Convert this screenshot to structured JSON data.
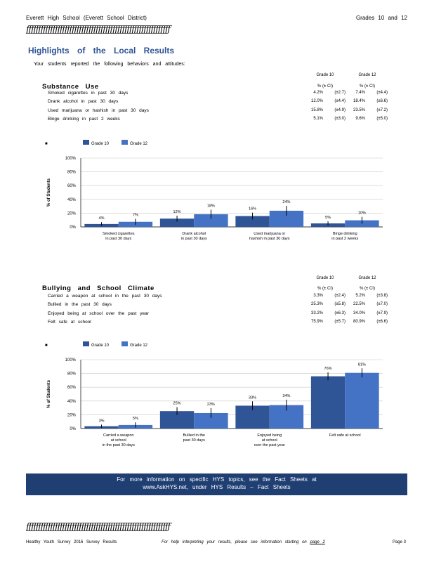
{
  "header": {
    "school": "Everett High School (Everett School District)",
    "grades": "Grades 10 and 12"
  },
  "rule": "ƒƒƒƒƒƒƒƒƒƒƒƒƒƒƒƒƒƒƒƒƒƒƒƒƒƒƒƒƒƒƒƒƒƒƒƒƒƒƒƒƒƒƒƒƒƒƒƒƒƒƒƒƒƒƒƒƒƒƒƒ",
  "title": "Highlights of the Local Results",
  "subtitle": "Your students reported the following behaviors and attitudes:",
  "columns": {
    "g10": "Grade 10",
    "g12": "Grade 12",
    "pct": "% (± CI)"
  },
  "sections": [
    {
      "title": "Substance Use",
      "rows": [
        {
          "label": "Smoked cigarettes in past 30 days",
          "g10": "4.2%",
          "g10ci": "(±2.7)",
          "g12": "7.4%",
          "g12ci": "(±4.4)"
        },
        {
          "label": "Drank alcohol in past 30 days",
          "g10": "12.0%",
          "g10ci": "(±4.4)",
          "g12": "18.4%",
          "g12ci": "(±6.6)"
        },
        {
          "label": "Used marijuana or hashish in past 30 days",
          "g10": "15.8%",
          "g10ci": "(±4.9)",
          "g12": "23.5%",
          "g12ci": "(±7.2)"
        },
        {
          "label": "Binge drinking in past 2 weeks",
          "g10": "5.1%",
          "g10ci": "(±3.0)",
          "g12": "9.6%",
          "g12ci": "(±5.0)"
        }
      ]
    },
    {
      "title": "Bullying and School Climate",
      "rows": [
        {
          "label": "Carried a weapon at school in the past 30 days",
          "g10": "3.3%",
          "g10ci": "(±2.4)",
          "g12": "5.2%",
          "g12ci": "(±3.8)"
        },
        {
          "label": "Bullied in the past 30 days",
          "g10": "25.3%",
          "g10ci": "(±5.8)",
          "g12": "22.5%",
          "g12ci": "(±7.0)"
        },
        {
          "label": "Enjoyed being at school over the past year",
          "g10": "33.2%",
          "g10ci": "(±6.3)",
          "g12": "34.0%",
          "g12ci": "(±7.9)"
        },
        {
          "label": "Felt safe at school",
          "g10": "75.9%",
          "g10ci": "(±5.7)",
          "g12": "80.9%",
          "g12ci": "(±6.6)"
        }
      ]
    }
  ],
  "chart_data": [
    {
      "type": "bar",
      "legend_mark": "■",
      "ylabel": "% of Students",
      "ylim": [
        0,
        100
      ],
      "yticks": [
        "0%",
        "20%",
        "40%",
        "60%",
        "80%",
        "100%"
      ],
      "grid": true,
      "legend": "top-left",
      "categories": [
        [
          "Smoked cigarettes",
          "in past 30 days"
        ],
        [
          "Drank alcohol",
          "in past 30 days"
        ],
        [
          "Used marijuana or",
          "hashish in past 30 days"
        ],
        [
          "Binge drinking",
          "in past 2 weeks"
        ]
      ],
      "series": [
        {
          "name": "Grade 10",
          "color": "#2f5597",
          "values": [
            4.2,
            12.0,
            15.8,
            5.1
          ],
          "ci": [
            2.7,
            4.4,
            4.9,
            3.0
          ],
          "labels": [
            "4%",
            "12%",
            "16%",
            "5%"
          ]
        },
        {
          "name": "Grade 12",
          "color": "#4472c4",
          "values": [
            7.4,
            18.4,
            23.5,
            9.6
          ],
          "ci": [
            4.4,
            6.6,
            7.2,
            5.0
          ],
          "labels": [
            "7%",
            "18%",
            "24%",
            "10%"
          ]
        }
      ]
    },
    {
      "type": "bar",
      "legend_mark": "■",
      "ylabel": "% of Students",
      "ylim": [
        0,
        100
      ],
      "yticks": [
        "0%",
        "20%",
        "40%",
        "60%",
        "80%",
        "100%"
      ],
      "grid": true,
      "legend": "top-left",
      "categories": [
        [
          "Carried a weapon",
          "at school",
          "in the past 30 days"
        ],
        [
          "Bullied in the",
          "past 30 days"
        ],
        [
          "Enjoyed being",
          "at school",
          "over the past year"
        ],
        [
          "Felt safe at school"
        ]
      ],
      "series": [
        {
          "name": "Grade 10",
          "color": "#2f5597",
          "values": [
            3.3,
            25.3,
            33.2,
            75.9
          ],
          "ci": [
            2.4,
            5.8,
            6.3,
            5.7
          ],
          "labels": [
            "3%",
            "25%",
            "33%",
            "76%"
          ]
        },
        {
          "name": "Grade 12",
          "color": "#4472c4",
          "values": [
            5.2,
            22.5,
            34.0,
            80.9
          ],
          "ci": [
            3.8,
            7.0,
            7.9,
            6.6
          ],
          "labels": [
            "5%",
            "23%",
            "34%",
            "81%"
          ]
        }
      ]
    }
  ],
  "banner": {
    "line1": "For more information on specific HYS topics, see the Fact Sheets at",
    "line2": "www.AskHYS.net, under HYS Results – Fact Sheets"
  },
  "footer": {
    "left": "Healthy Youth Survey 2016 Survey Results",
    "middle": "For help interpreting your results, please see information starting on",
    "page_ref": "page 2",
    "right": "Page 3"
  }
}
